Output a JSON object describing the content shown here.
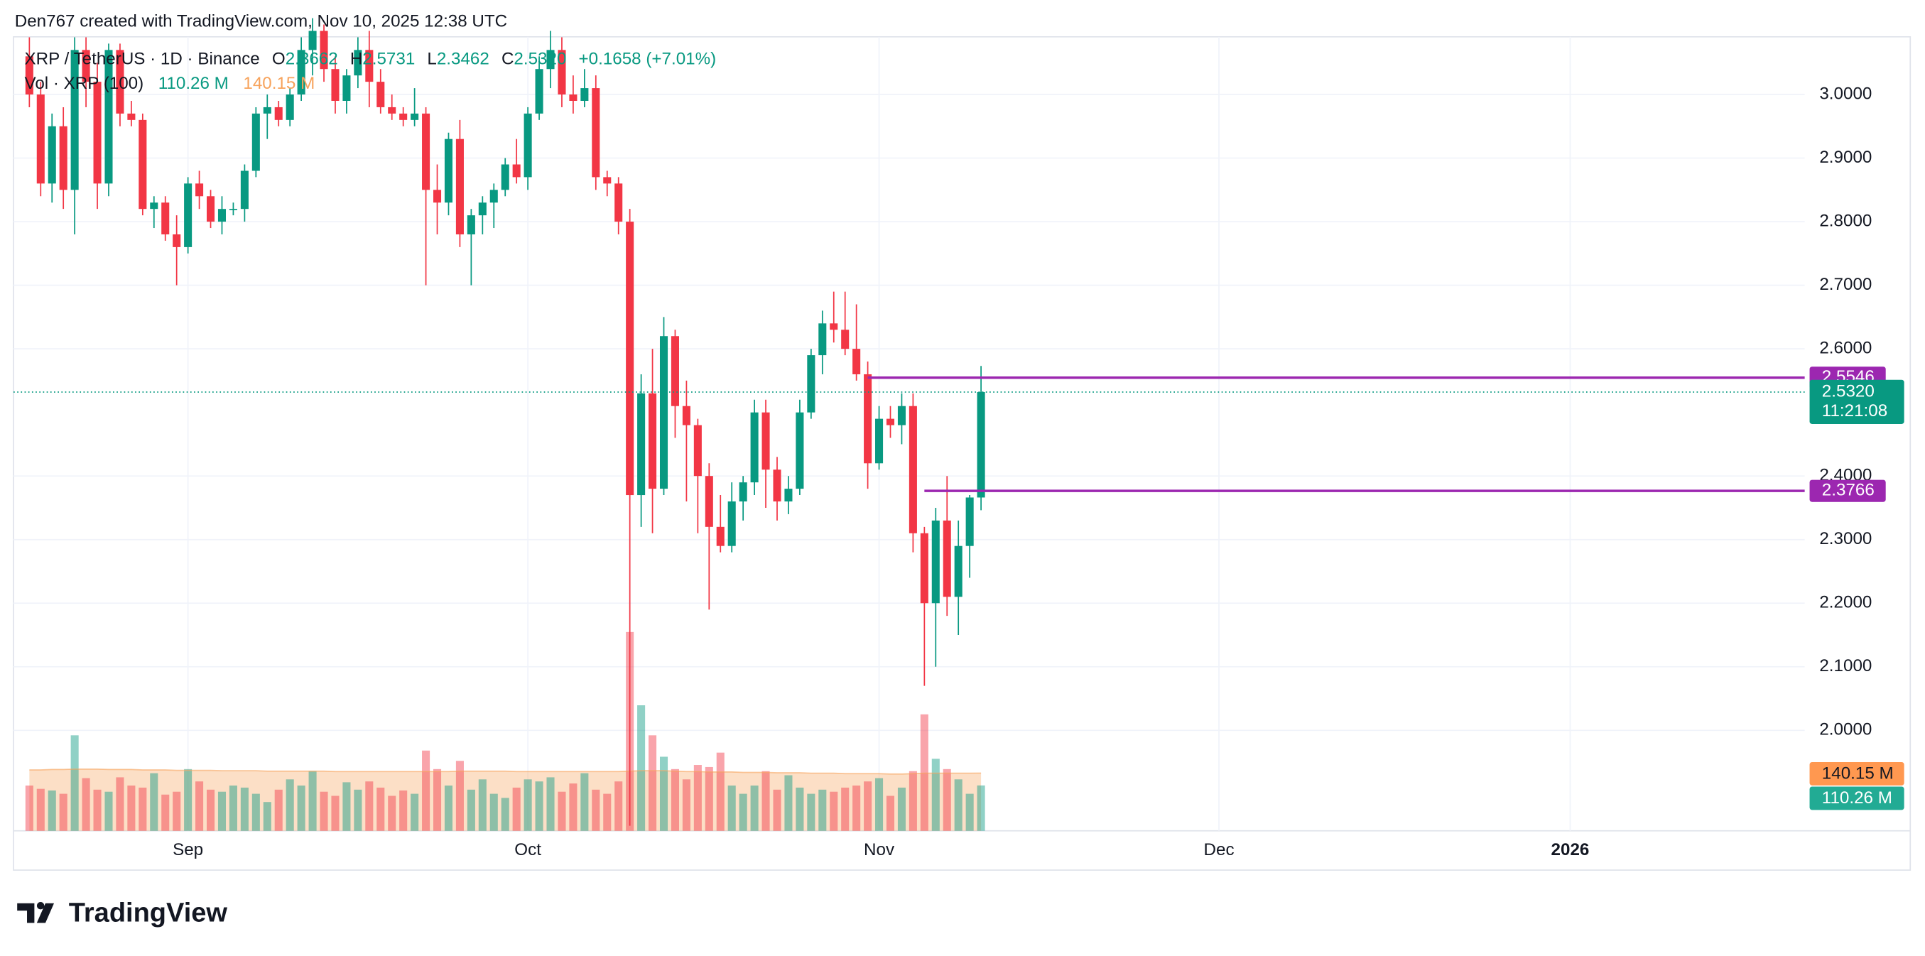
{
  "attribution": "Den767 created with TradingView.com, Nov 10, 2025 12:38 UTC",
  "logo": "TradingView",
  "chart_data": {
    "type": "candlestick",
    "title": "XRP / TetherUS · 1D · Binance",
    "header": {
      "o": "O",
      "open": "2.3662",
      "h": "H",
      "high": "2.5731",
      "l": "L",
      "low": "2.3462",
      "c": "C",
      "close": "2.5320",
      "change": "+0.1658 (+7.01%)"
    },
    "up_color": "#089981",
    "down_color": "#f23645",
    "x": [
      -14,
      -13,
      -12,
      -11,
      -10,
      -9,
      -8,
      -7,
      -6,
      -5,
      -4,
      -3,
      -2,
      -1,
      0,
      1,
      2,
      3,
      4,
      5,
      6,
      7,
      8,
      9,
      10,
      11,
      12,
      13,
      14,
      15,
      16,
      17,
      18,
      19,
      20,
      21,
      22,
      23,
      24,
      25,
      26,
      27,
      28,
      29,
      30,
      31,
      32,
      33,
      34,
      35,
      36,
      37,
      38,
      39,
      40,
      41,
      42,
      43,
      44,
      45,
      46,
      47,
      48,
      49,
      50,
      51,
      52,
      53,
      54,
      55,
      56,
      57,
      58,
      59,
      60,
      61,
      62,
      63,
      64,
      65,
      66,
      67,
      68,
      69,
      70
    ],
    "open": [
      3.06,
      3.0,
      2.86,
      2.95,
      2.85,
      3.07,
      3.02,
      2.86,
      3.07,
      2.97,
      2.96,
      2.82,
      2.83,
      2.78,
      2.76,
      2.86,
      2.84,
      2.8,
      2.82,
      2.82,
      2.88,
      2.97,
      2.98,
      2.96,
      3.0,
      3.07,
      3.1,
      3.04,
      2.99,
      3.03,
      3.07,
      3.02,
      2.98,
      2.97,
      2.96,
      2.97,
      2.85,
      2.83,
      2.93,
      2.78,
      2.81,
      2.83,
      2.85,
      2.89,
      2.87,
      2.97,
      3.04,
      3.07,
      3.0,
      2.99,
      3.01,
      2.87,
      2.86,
      2.8,
      2.37,
      2.53,
      2.38,
      2.62,
      2.51,
      2.48,
      2.4,
      2.32,
      2.29,
      2.36,
      2.39,
      2.5,
      2.41,
      2.36,
      2.38,
      2.5,
      2.59,
      2.64,
      2.63,
      2.6,
      2.56,
      2.42,
      2.49,
      2.48,
      2.51,
      2.31,
      2.2,
      2.33,
      2.21,
      2.29,
      2.3662
    ],
    "high": [
      3.09,
      3.02,
      2.97,
      2.98,
      3.09,
      3.09,
      3.05,
      3.08,
      3.08,
      2.99,
      2.97,
      2.84,
      2.84,
      2.81,
      2.87,
      2.88,
      2.85,
      2.84,
      2.83,
      2.89,
      2.98,
      3.0,
      2.99,
      3.01,
      3.09,
      3.12,
      3.11,
      3.06,
      3.04,
      3.09,
      3.1,
      3.04,
      3.0,
      2.98,
      3.01,
      2.98,
      2.89,
      2.94,
      2.96,
      2.82,
      2.84,
      2.86,
      2.9,
      2.93,
      2.98,
      3.06,
      3.1,
      3.09,
      3.03,
      3.04,
      3.03,
      2.88,
      2.87,
      2.82,
      2.56,
      2.6,
      2.65,
      2.63,
      2.55,
      2.49,
      2.42,
      2.37,
      2.39,
      2.4,
      2.52,
      2.52,
      2.43,
      2.4,
      2.52,
      2.6,
      2.66,
      2.69,
      2.69,
      2.67,
      2.58,
      2.51,
      2.51,
      2.53,
      2.53,
      2.32,
      2.35,
      2.4,
      2.33,
      2.37,
      2.5731
    ],
    "low": [
      2.98,
      2.84,
      2.83,
      2.82,
      2.78,
      2.98,
      2.82,
      2.84,
      2.95,
      2.95,
      2.81,
      2.79,
      2.77,
      2.7,
      2.75,
      2.82,
      2.79,
      2.78,
      2.81,
      2.8,
      2.87,
      2.93,
      2.95,
      2.95,
      2.99,
      3.03,
      3.02,
      2.97,
      2.97,
      3.01,
      2.98,
      2.97,
      2.96,
      2.95,
      2.95,
      2.7,
      2.78,
      2.81,
      2.76,
      2.7,
      2.78,
      2.79,
      2.84,
      2.86,
      2.85,
      2.96,
      3.01,
      2.98,
      2.97,
      2.98,
      2.85,
      2.84,
      2.78,
      1.85,
      2.32,
      2.31,
      2.37,
      2.46,
      2.36,
      2.31,
      2.19,
      2.28,
      2.28,
      2.33,
      2.37,
      2.35,
      2.33,
      2.34,
      2.37,
      2.49,
      2.56,
      2.61,
      2.59,
      2.55,
      2.38,
      2.41,
      2.46,
      2.45,
      2.28,
      2.07,
      2.1,
      2.18,
      2.15,
      2.24,
      2.3462
    ],
    "close": [
      3.0,
      2.86,
      2.95,
      2.85,
      3.07,
      3.02,
      2.86,
      3.07,
      2.97,
      2.96,
      2.82,
      2.83,
      2.78,
      2.76,
      2.86,
      2.84,
      2.8,
      2.82,
      2.82,
      2.88,
      2.97,
      2.98,
      2.96,
      3.0,
      3.07,
      3.1,
      3.04,
      2.99,
      3.03,
      3.07,
      3.02,
      2.98,
      2.97,
      2.96,
      2.97,
      2.85,
      2.83,
      2.93,
      2.78,
      2.81,
      2.83,
      2.85,
      2.89,
      2.87,
      2.97,
      3.04,
      3.07,
      3.0,
      2.99,
      3.01,
      2.87,
      2.86,
      2.8,
      2.37,
      2.53,
      2.38,
      2.62,
      2.51,
      2.48,
      2.4,
      2.32,
      2.29,
      2.36,
      2.39,
      2.5,
      2.41,
      2.36,
      2.38,
      2.5,
      2.59,
      2.64,
      2.63,
      2.6,
      2.56,
      2.42,
      2.49,
      2.48,
      2.51,
      2.31,
      2.2,
      2.33,
      2.21,
      2.29,
      2.3662,
      2.532
    ],
    "volume": {
      "name": "Vol · XRP (100)",
      "value_label": "110.26 M",
      "values": [
        110,
        102,
        98,
        90,
        232,
        128,
        100,
        95,
        130,
        110,
        105,
        140,
        88,
        95,
        150,
        120,
        100,
        95,
        110,
        105,
        90,
        70,
        100,
        125,
        110,
        145,
        95,
        85,
        118,
        100,
        120,
        105,
        85,
        98,
        90,
        195,
        150,
        110,
        170,
        100,
        125,
        90,
        80,
        105,
        125,
        120,
        130,
        95,
        115,
        140,
        100,
        90,
        120,
        483,
        305,
        232,
        180,
        150,
        125,
        160,
        155,
        190,
        110,
        90,
        110,
        145,
        100,
        135,
        105,
        90,
        100,
        95,
        105,
        110,
        120,
        128,
        85,
        105,
        145,
        283,
        175,
        150,
        125,
        90,
        110.26
      ]
    },
    "volume_ma": {
      "value_label": "140.15 M",
      "color": "#f7a35c",
      "values": [
        148,
        148,
        149,
        149,
        150,
        150,
        150,
        149,
        149,
        149,
        148,
        148,
        148,
        147,
        147,
        147,
        147,
        146,
        146,
        146,
        146,
        145,
        145,
        145,
        145,
        145,
        145,
        144,
        144,
        144,
        144,
        144,
        144,
        144,
        144,
        144,
        144,
        144,
        145,
        145,
        145,
        145,
        145,
        144,
        144,
        144,
        144,
        144,
        144,
        144,
        144,
        144,
        144,
        145,
        146,
        146,
        146,
        145,
        144,
        144,
        143,
        143,
        143,
        142,
        142,
        142,
        141,
        141,
        141,
        140,
        140,
        140,
        139,
        139,
        139,
        139,
        138,
        138,
        139,
        140,
        140,
        140,
        140,
        140,
        140.15
      ]
    },
    "volume_ylim": [
      0,
      483
    ],
    "hlines": [
      {
        "value": 2.5546,
        "start": 60,
        "color": "#9c27b0"
      },
      {
        "value": 2.3766,
        "start": 65,
        "color": "#9c27b0"
      }
    ],
    "last_price": {
      "value": 2.532,
      "label": "2.5320"
    },
    "countdown": "11:21:08",
    "xlim": [
      -15.4,
      142.7
    ],
    "xticks": [
      {
        "value": 0,
        "label": "Sep"
      },
      {
        "value": 30,
        "label": "Oct"
      },
      {
        "value": 61,
        "label": "Nov"
      },
      {
        "value": 91,
        "label": "Dec"
      },
      {
        "value": 122,
        "label": "2026"
      }
    ],
    "ylim": [
      1.842,
      3.0907
    ],
    "yticks": [
      {
        "value": 2.0,
        "label": "2.0000"
      },
      {
        "value": 2.1,
        "label": "2.1000"
      },
      {
        "value": 2.2,
        "label": "2.2000"
      },
      {
        "value": 2.3,
        "label": "2.3000"
      },
      {
        "value": 2.4,
        "label": "2.4000"
      },
      {
        "value": 2.6,
        "label": "2.6000"
      },
      {
        "value": 2.7,
        "label": "2.7000"
      },
      {
        "value": 2.8,
        "label": "2.8000"
      },
      {
        "value": 2.9,
        "label": "2.9000"
      },
      {
        "value": 3.0,
        "label": "3.0000"
      }
    ],
    "grid": true
  }
}
